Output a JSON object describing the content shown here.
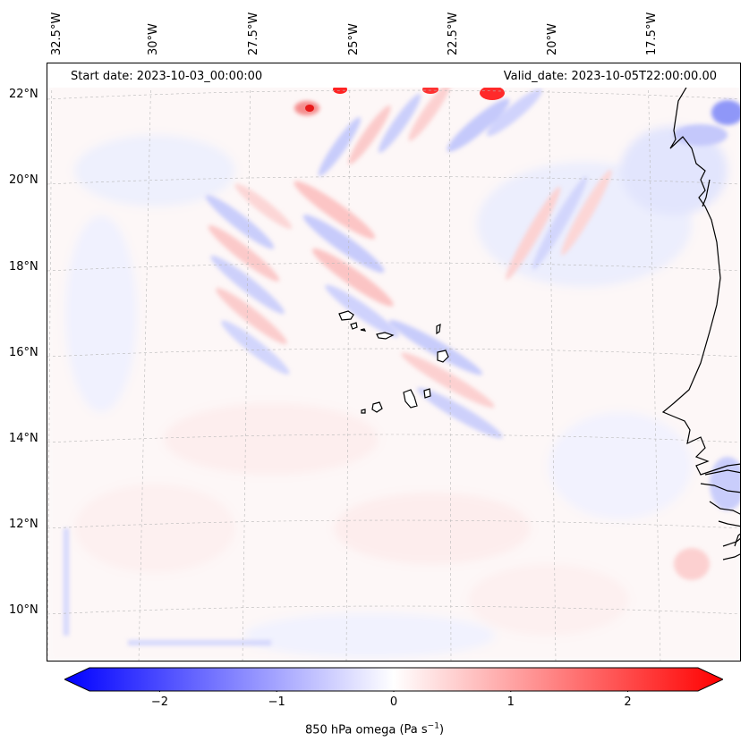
{
  "map": {
    "start_label": "Start date: 2023-10-03_00:00:00",
    "valid_label": "Valid_date: 2023-10-05T22:00:00.00",
    "variable": "850 hPa omega",
    "units_base": "(Pa s",
    "units_exp": "−1",
    "units_close": ")",
    "lon_labels": [
      "32.5°W",
      "30°W",
      "27.5°W",
      "25°W",
      "22.5°W",
      "20°W",
      "17.5°W"
    ],
    "lat_labels": [
      "22°N",
      "20°N",
      "18°N",
      "16°N",
      "14°N",
      "12°N",
      "10°N"
    ],
    "islands": [
      "Santo Antão",
      "São Vicente",
      "Santa Luzia",
      "São Nicolau",
      "Sal",
      "Boa Vista",
      "Maio",
      "Santiago",
      "Fogo",
      "Brava"
    ],
    "coastline": "West Africa (Mauritania, Senegal, The Gambia, Guinea-Bissau)"
  },
  "colorbar": {
    "min": -2.6,
    "max": 2.6,
    "ticks": [
      "−2",
      "−1",
      "0",
      "1",
      "2"
    ],
    "tick_values": [
      -2,
      -1,
      0,
      1,
      2
    ],
    "neg_color": "#0000ff",
    "pos_color": "#ff0000",
    "mid_color": "#ffffff"
  }
}
